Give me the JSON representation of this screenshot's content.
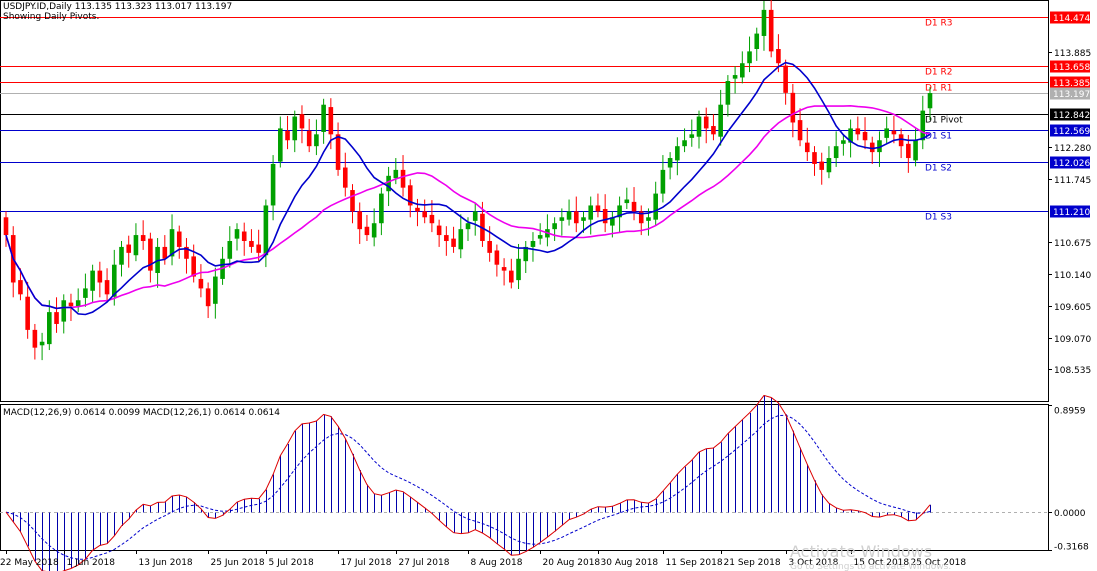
{
  "header": {
    "title": "USDJPY.ID,Daily  113.135 113.323 113.017 113.197",
    "subtitle": "Showing Daily Pivots."
  },
  "macd_header": "MACD(12,26,9) 0.0614 0.0099 MACD(12,26,1) 0.0614 0.0614",
  "watermark": {
    "line1": "Activate Windows",
    "line2": "Go to Settings to activate Windows."
  },
  "colors": {
    "bull": "#00a000",
    "bear": "#ff0000",
    "ma_fast": "#0000cc",
    "ma_slow": "#ee00ee",
    "pivot_res": "#ff0000",
    "pivot_sup": "#0000cc",
    "pivot_center": "#000000",
    "macd_hist": "#0000aa",
    "macd_signal": "#0000cc",
    "macd_line": "#dd0000",
    "current_price": "#b0b0b0"
  },
  "chart_data": [
    {
      "type": "candlestick",
      "symbol": "USDJPY.ID",
      "timeframe": "Daily",
      "ylim": [
        108.0,
        114.75
      ],
      "y_ticks": [
        {
          "value": 108.535,
          "label": "108.535"
        },
        {
          "value": 109.07,
          "label": "109.070"
        },
        {
          "value": 109.605,
          "label": "109.605"
        },
        {
          "value": 110.14,
          "label": "110.140"
        },
        {
          "value": 110.675,
          "label": "110.675"
        },
        {
          "value": 111.745,
          "label": "111.745"
        },
        {
          "value": 112.28,
          "label": "112.280"
        },
        {
          "value": 113.885,
          "label": "113.885"
        }
      ],
      "x_ticks": [
        {
          "index": 0,
          "label": "22 May 2018"
        },
        {
          "index": 8,
          "label": "1 Jun 2018"
        },
        {
          "index": 18,
          "label": "13 Jun 2018"
        },
        {
          "index": 28,
          "label": "25 Jun 2018"
        },
        {
          "index": 36,
          "label": "5 Jul 2018"
        },
        {
          "index": 46,
          "label": "17 Jul 2018"
        },
        {
          "index": 54,
          "label": "27 Jul 2018"
        },
        {
          "index": 64,
          "label": "8 Aug 2018"
        },
        {
          "index": 74,
          "label": "20 Aug 2018"
        },
        {
          "index": 82,
          "label": "30 Aug 2018"
        },
        {
          "index": 91,
          "label": "11 Sep 2018"
        },
        {
          "index": 99,
          "label": "21 Sep 2018"
        },
        {
          "index": 108,
          "label": "3 Oct 2018"
        },
        {
          "index": 117,
          "label": "15 Oct 2018"
        },
        {
          "index": 125,
          "label": "25 Oct 2018"
        }
      ],
      "pivots": [
        {
          "name": "D1 R3",
          "value": 114.474,
          "label": "114.474",
          "kind": "res"
        },
        {
          "name": "D1 R2",
          "value": 113.658,
          "label": "113.658",
          "kind": "res"
        },
        {
          "name": "D1 R1",
          "value": 113.385,
          "label": "113.385",
          "kind": "res"
        },
        {
          "name": "D1 Pivot",
          "value": 112.842,
          "label": "112.842",
          "kind": "center"
        },
        {
          "name": "D1 S1",
          "value": 112.569,
          "label": "112.569",
          "kind": "sup"
        },
        {
          "name": "D1 S2",
          "value": 112.026,
          "label": "112.026",
          "kind": "sup"
        },
        {
          "name": "D1 S3",
          "value": 111.21,
          "label": "111.210",
          "kind": "sup"
        }
      ],
      "current_price": {
        "value": 113.197,
        "label": "113.197"
      },
      "closes": [
        110.8,
        110.0,
        109.8,
        109.2,
        108.9,
        109.0,
        109.5,
        109.3,
        109.7,
        109.6,
        109.7,
        109.9,
        110.2,
        110.0,
        109.8,
        110.3,
        110.6,
        110.5,
        110.8,
        110.7,
        110.2,
        110.6,
        110.4,
        110.9,
        110.6,
        110.4,
        110.1,
        109.9,
        109.6,
        110.1,
        110.4,
        110.7,
        110.9,
        110.7,
        110.6,
        110.5,
        111.3,
        112.0,
        112.6,
        112.4,
        112.8,
        112.6,
        112.3,
        112.5,
        113.0,
        112.5,
        111.9,
        111.6,
        111.2,
        110.9,
        110.8,
        111.0,
        111.5,
        111.8,
        111.9,
        111.6,
        111.3,
        111.2,
        111.1,
        111.0,
        110.8,
        110.7,
        110.6,
        110.9,
        111.0,
        111.2,
        110.7,
        110.5,
        110.3,
        110.2,
        110.0,
        110.4,
        110.6,
        110.7,
        110.8,
        110.9,
        111.0,
        111.1,
        111.2,
        111.0,
        111.1,
        111.3,
        111.2,
        111.0,
        111.1,
        111.3,
        111.4,
        111.2,
        111.0,
        111.1,
        111.5,
        111.9,
        112.1,
        112.3,
        112.4,
        112.5,
        112.8,
        112.6,
        112.5,
        113.0,
        113.4,
        113.5,
        113.7,
        113.9,
        114.2,
        114.6,
        113.9,
        113.7,
        113.2,
        112.7,
        112.4,
        112.2,
        112.0,
        111.9,
        112.1,
        112.3,
        112.4,
        112.6,
        112.5,
        112.4,
        112.2,
        112.4,
        112.6,
        112.5,
        112.3,
        112.1,
        112.4,
        112.9,
        113.197
      ],
      "ma_fast_label": "",
      "ma_slow_label": ""
    },
    {
      "type": "macd",
      "title": "MACD(12,26,9) 0.0614 0.0099 MACD(12,26,1) 0.0614 0.0614",
      "ylim": [
        -0.3168,
        0.8959
      ],
      "y_ticks": [
        {
          "value": 0.8959,
          "label": "0.8959"
        },
        {
          "value": 0.0,
          "label": "0.0000"
        },
        {
          "value": -0.3168,
          "label": "-0.3168"
        }
      ],
      "macd_value": 0.0614,
      "signal_value": 0.0099
    }
  ]
}
